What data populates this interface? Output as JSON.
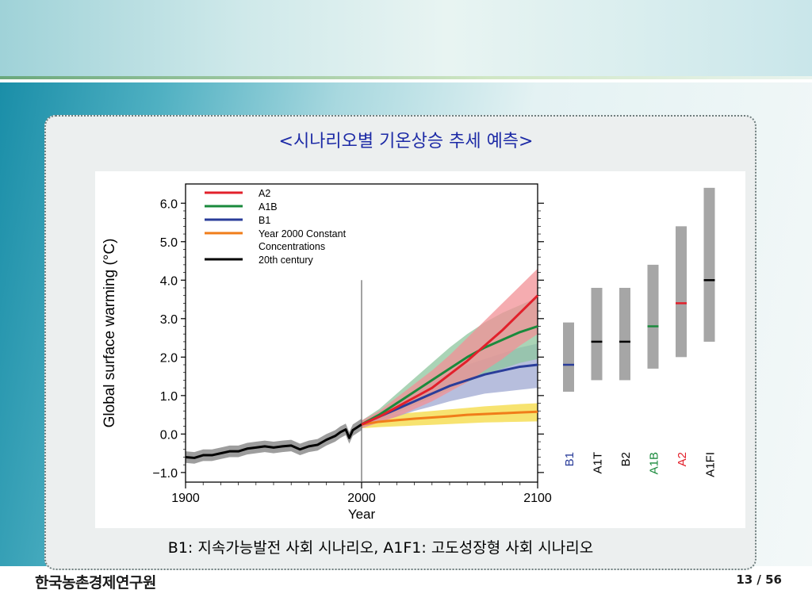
{
  "slide": {
    "title": "<시나리오별 기온상승 추세 예측>",
    "caption": "B1: 지속가능발전 사회 시나리오, A1F1: 고도성장형 사회 시나리오",
    "organization": "한국농촌경제연구원",
    "page": "13 / 56"
  },
  "colors": {
    "A2": "#e2202b",
    "A1B": "#1a8a3c",
    "B1": "#2a3d9a",
    "constant": "#f07d1a",
    "century20": "#000000",
    "range_bar": "#a6a6a6",
    "title": "#1c2aa6"
  },
  "chart_data": [
    {
      "type": "line",
      "xlabel": "Year",
      "ylabel": "Global surface warming (°C)",
      "xlim": [
        1900,
        2100
      ],
      "ylim": [
        -1.25,
        6.5
      ],
      "x_ticks": [
        "1900",
        "2000",
        "2100"
      ],
      "y_ticks": [
        "6.0",
        "5.0",
        "4.0",
        "3.0",
        "2.0",
        "1.0",
        "0.0",
        "−1.0"
      ],
      "y_tick_values": [
        6,
        5,
        4,
        3,
        2,
        1,
        0,
        -1
      ],
      "x_tick_values": [
        1900,
        2000,
        2100
      ],
      "vertical_line_at": 2000,
      "legend_position": "top-left",
      "legend": [
        {
          "key": "A2",
          "label": "A2"
        },
        {
          "key": "A1B",
          "label": "A1B"
        },
        {
          "key": "B1",
          "label": "B1"
        },
        {
          "key": "constant",
          "label": "Year 2000 Constant",
          "label2": "Concentrations"
        },
        {
          "key": "century20",
          "label": "20th century"
        }
      ],
      "series": [
        {
          "name": "20th century",
          "key": "century20",
          "x": [
            1900,
            1905,
            1910,
            1915,
            1920,
            1925,
            1930,
            1935,
            1940,
            1945,
            1950,
            1955,
            1960,
            1965,
            1970,
            1975,
            1980,
            1985,
            1988,
            1991,
            1993,
            1995,
            2000
          ],
          "y": [
            -0.6,
            -0.62,
            -0.55,
            -0.55,
            -0.5,
            -0.45,
            -0.45,
            -0.38,
            -0.35,
            -0.32,
            -0.35,
            -0.32,
            -0.3,
            -0.4,
            -0.32,
            -0.28,
            -0.15,
            -0.05,
            0.05,
            0.12,
            -0.1,
            0.1,
            0.25
          ],
          "band": 0.15
        },
        {
          "name": "A2",
          "key": "A2",
          "x": [
            2000,
            2010,
            2020,
            2030,
            2040,
            2050,
            2060,
            2070,
            2080,
            2090,
            2100
          ],
          "y": [
            0.25,
            0.45,
            0.7,
            0.95,
            1.2,
            1.55,
            1.9,
            2.3,
            2.7,
            3.15,
            3.6
          ],
          "band_lo": [
            0.15,
            0.3,
            0.45,
            0.65,
            0.85,
            1.1,
            1.35,
            1.65,
            1.95,
            2.3,
            2.6
          ],
          "band_hi": [
            0.35,
            0.6,
            0.95,
            1.3,
            1.65,
            2.05,
            2.5,
            2.95,
            3.4,
            3.85,
            4.3
          ]
        },
        {
          "name": "A1B",
          "key": "A1B",
          "x": [
            2000,
            2010,
            2020,
            2030,
            2040,
            2050,
            2060,
            2070,
            2080,
            2090,
            2100
          ],
          "y": [
            0.25,
            0.5,
            0.8,
            1.1,
            1.4,
            1.7,
            2.0,
            2.25,
            2.45,
            2.65,
            2.8
          ],
          "band_lo": [
            0.15,
            0.35,
            0.55,
            0.75,
            0.95,
            1.15,
            1.35,
            1.55,
            1.7,
            1.85,
            1.95
          ],
          "band_hi": [
            0.35,
            0.65,
            1.05,
            1.45,
            1.85,
            2.25,
            2.6,
            2.9,
            3.15,
            3.35,
            3.55
          ]
        },
        {
          "name": "B1",
          "key": "B1",
          "x": [
            2000,
            2010,
            2020,
            2030,
            2040,
            2050,
            2060,
            2070,
            2080,
            2090,
            2100
          ],
          "y": [
            0.25,
            0.45,
            0.65,
            0.85,
            1.05,
            1.25,
            1.4,
            1.55,
            1.65,
            1.75,
            1.8
          ],
          "band_lo": [
            0.15,
            0.32,
            0.45,
            0.6,
            0.72,
            0.85,
            0.95,
            1.05,
            1.1,
            1.15,
            1.2
          ],
          "band_hi": [
            0.35,
            0.58,
            0.85,
            1.1,
            1.35,
            1.6,
            1.8,
            1.95,
            2.1,
            2.25,
            2.35
          ]
        },
        {
          "name": "Year 2000 Constant Concentrations",
          "key": "constant",
          "x": [
            2000,
            2010,
            2020,
            2030,
            2040,
            2050,
            2060,
            2070,
            2080,
            2090,
            2100
          ],
          "y": [
            0.25,
            0.32,
            0.36,
            0.4,
            0.43,
            0.46,
            0.5,
            0.52,
            0.54,
            0.56,
            0.58
          ],
          "band_lo": [
            0.15,
            0.18,
            0.2,
            0.22,
            0.24,
            0.26,
            0.28,
            0.3,
            0.31,
            0.32,
            0.33
          ],
          "band_hi": [
            0.35,
            0.45,
            0.52,
            0.56,
            0.6,
            0.64,
            0.68,
            0.72,
            0.75,
            0.78,
            0.8
          ]
        }
      ]
    },
    {
      "type": "bar",
      "categories": [
        "B1",
        "A1T",
        "B2",
        "A1B",
        "A2",
        "A1FI"
      ],
      "category_color_keys": [
        "B1",
        "century20",
        "century20",
        "A1B",
        "A2",
        "century20"
      ],
      "ranges": [
        [
          1.1,
          2.9
        ],
        [
          1.4,
          3.8
        ],
        [
          1.4,
          3.8
        ],
        [
          1.7,
          4.4
        ],
        [
          2.0,
          5.4
        ],
        [
          2.4,
          6.4
        ]
      ],
      "best_estimates": [
        1.8,
        2.4,
        2.4,
        2.8,
        3.4,
        4.0
      ]
    }
  ]
}
